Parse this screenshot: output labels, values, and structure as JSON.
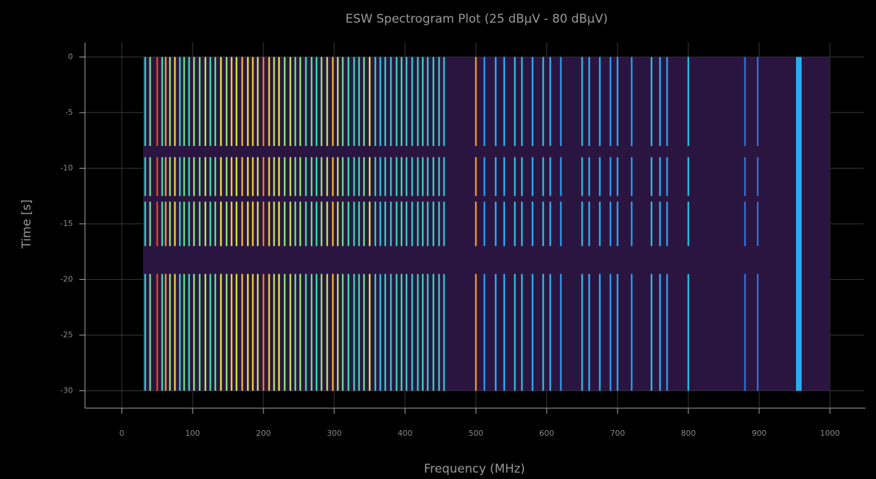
{
  "chart_data": {
    "type": "spectrogram",
    "title": "ESW Spectrogram Plot (25 dBµV - 80 dBµV)",
    "x_label": "Frequency (MHz)",
    "y_label": "Time [s]",
    "xlim": [
      -52,
      1048
    ],
    "ylim": [
      -31.5,
      1.3
    ],
    "xticks": [
      0,
      100,
      200,
      300,
      400,
      500,
      600,
      700,
      800,
      900,
      1000
    ],
    "yticks": [
      0,
      -5,
      -10,
      -15,
      -20,
      -25,
      -30
    ],
    "grid": true,
    "zlim": [
      25,
      80
    ],
    "extent": {
      "freq": [
        30,
        1000
      ],
      "time": [
        -30,
        0
      ]
    },
    "bursts": [
      [
        0,
        -8
      ],
      [
        -9,
        -12.5
      ],
      [
        -13,
        -17
      ],
      [
        -19.5,
        -30
      ]
    ],
    "carriers": [
      {
        "freq": 33,
        "level": 55
      },
      {
        "freq": 40,
        "level": 60
      },
      {
        "freq": 50,
        "level": 78
      },
      {
        "freq": 57,
        "level": 58
      },
      {
        "freq": 62,
        "level": 72
      },
      {
        "freq": 68,
        "level": 62
      },
      {
        "freq": 75,
        "level": 68
      },
      {
        "freq": 82,
        "level": 55
      },
      {
        "freq": 88,
        "level": 60
      },
      {
        "freq": 95,
        "level": 57
      },
      {
        "freq": 102,
        "level": 62
      },
      {
        "freq": 110,
        "level": 60
      },
      {
        "freq": 118,
        "level": 64
      },
      {
        "freq": 125,
        "level": 58
      },
      {
        "freq": 132,
        "level": 60
      },
      {
        "freq": 140,
        "level": 66
      },
      {
        "freq": 148,
        "level": 62
      },
      {
        "freq": 155,
        "level": 68
      },
      {
        "freq": 162,
        "level": 65
      },
      {
        "freq": 170,
        "level": 70
      },
      {
        "freq": 178,
        "level": 66
      },
      {
        "freq": 185,
        "level": 68
      },
      {
        "freq": 192,
        "level": 65
      },
      {
        "freq": 200,
        "level": 74
      },
      {
        "freq": 208,
        "level": 68
      },
      {
        "freq": 215,
        "level": 64
      },
      {
        "freq": 222,
        "level": 66
      },
      {
        "freq": 230,
        "level": 62
      },
      {
        "freq": 238,
        "level": 64
      },
      {
        "freq": 245,
        "level": 60
      },
      {
        "freq": 252,
        "level": 62
      },
      {
        "freq": 260,
        "level": 58
      },
      {
        "freq": 268,
        "level": 60
      },
      {
        "freq": 275,
        "level": 58
      },
      {
        "freq": 282,
        "level": 62
      },
      {
        "freq": 290,
        "level": 64
      },
      {
        "freq": 298,
        "level": 70
      },
      {
        "freq": 305,
        "level": 64
      },
      {
        "freq": 312,
        "level": 60
      },
      {
        "freq": 320,
        "level": 58
      },
      {
        "freq": 328,
        "level": 56
      },
      {
        "freq": 335,
        "level": 57
      },
      {
        "freq": 342,
        "level": 60
      },
      {
        "freq": 350,
        "level": 66
      },
      {
        "freq": 358,
        "level": 55
      },
      {
        "freq": 365,
        "level": 53
      },
      {
        "freq": 372,
        "level": 55
      },
      {
        "freq": 380,
        "level": 54
      },
      {
        "freq": 388,
        "level": 56
      },
      {
        "freq": 395,
        "level": 58
      },
      {
        "freq": 402,
        "level": 55
      },
      {
        "freq": 410,
        "level": 54
      },
      {
        "freq": 418,
        "level": 55
      },
      {
        "freq": 425,
        "level": 56
      },
      {
        "freq": 432,
        "level": 54
      },
      {
        "freq": 440,
        "level": 56
      },
      {
        "freq": 448,
        "level": 55
      },
      {
        "freq": 455,
        "level": 53
      },
      {
        "freq": 500,
        "level": 72
      },
      {
        "freq": 512,
        "level": 48
      },
      {
        "freq": 528,
        "level": 50
      },
      {
        "freq": 540,
        "level": 50
      },
      {
        "freq": 555,
        "level": 52
      },
      {
        "freq": 565,
        "level": 52
      },
      {
        "freq": 580,
        "level": 50
      },
      {
        "freq": 595,
        "level": 52
      },
      {
        "freq": 605,
        "level": 50
      },
      {
        "freq": 620,
        "level": 48
      },
      {
        "freq": 650,
        "level": 52
      },
      {
        "freq": 660,
        "level": 50
      },
      {
        "freq": 675,
        "level": 50
      },
      {
        "freq": 690,
        "level": 48
      },
      {
        "freq": 700,
        "level": 49
      },
      {
        "freq": 720,
        "level": 48
      },
      {
        "freq": 748,
        "level": 52
      },
      {
        "freq": 760,
        "level": 50
      },
      {
        "freq": 770,
        "level": 48
      },
      {
        "freq": 800,
        "level": 52
      },
      {
        "freq": 880,
        "level": 44
      },
      {
        "freq": 898,
        "level": 44
      }
    ],
    "wideband": {
      "freq": [
        952,
        960
      ],
      "level": 50
    }
  }
}
